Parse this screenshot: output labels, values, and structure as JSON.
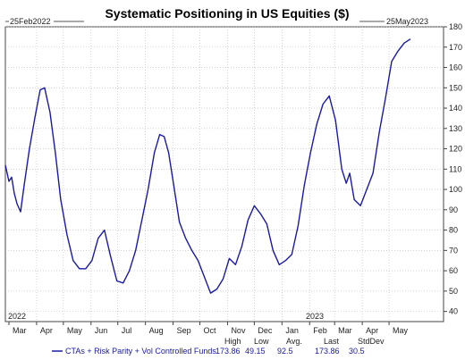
{
  "chart_data": {
    "type": "line",
    "title": "Systematic Positioning in US Equities ($)",
    "start_label": "25Feb2022",
    "end_label": "25May2023",
    "year_labels": [
      "2022",
      "2023"
    ],
    "ylim": [
      35,
      180
    ],
    "yticks": [
      40,
      50,
      60,
      70,
      80,
      90,
      100,
      110,
      120,
      130,
      140,
      150,
      160,
      170,
      180
    ],
    "month_labels": [
      "Mar",
      "Apr",
      "May",
      "Jun",
      "Jul",
      "Aug",
      "Sep",
      "Oct",
      "Nov",
      "Dec",
      "Jan",
      "Feb",
      "Mar",
      "Apr",
      "May"
    ],
    "series": [
      {
        "name": "CTAs + Risk Parity + Vol Controlled Funds",
        "color": "#1a1aa6",
        "x": [
          "2022-02-25",
          "2022-03-01",
          "2022-03-04",
          "2022-03-07",
          "2022-03-10",
          "2022-03-14",
          "2022-03-18",
          "2022-03-24",
          "2022-03-30",
          "2022-04-05",
          "2022-04-10",
          "2022-04-16",
          "2022-04-22",
          "2022-04-28",
          "2022-05-05",
          "2022-05-12",
          "2022-05-19",
          "2022-05-26",
          "2022-06-02",
          "2022-06-09",
          "2022-06-16",
          "2022-06-23",
          "2022-06-30",
          "2022-07-07",
          "2022-07-14",
          "2022-07-21",
          "2022-07-28",
          "2022-08-04",
          "2022-08-11",
          "2022-08-17",
          "2022-08-22",
          "2022-08-27",
          "2022-09-01",
          "2022-09-08",
          "2022-09-15",
          "2022-09-22",
          "2022-09-29",
          "2022-10-06",
          "2022-10-13",
          "2022-10-20",
          "2022-10-27",
          "2022-11-03",
          "2022-11-10",
          "2022-11-17",
          "2022-11-24",
          "2022-12-01",
          "2022-12-08",
          "2022-12-15",
          "2022-12-22",
          "2022-12-29",
          "2023-01-05",
          "2023-01-12",
          "2023-01-19",
          "2023-01-26",
          "2023-02-02",
          "2023-02-09",
          "2023-02-16",
          "2023-02-23",
          "2023-03-02",
          "2023-03-09",
          "2023-03-14",
          "2023-03-18",
          "2023-03-23",
          "2023-03-30",
          "2023-04-06",
          "2023-04-13",
          "2023-04-20",
          "2023-04-27",
          "2023-05-04",
          "2023-05-11",
          "2023-05-18",
          "2023-05-25"
        ],
        "y": [
          112,
          104,
          106,
          98,
          93,
          89,
          102,
          120,
          135,
          149,
          150,
          138,
          118,
          95,
          78,
          65,
          61,
          61,
          65,
          76,
          80,
          67,
          55,
          54,
          60,
          70,
          85,
          100,
          118,
          127,
          126,
          118,
          104,
          84,
          76,
          70,
          65,
          57,
          49,
          51,
          56,
          66,
          63,
          72,
          85,
          92,
          88,
          83,
          70,
          63,
          65,
          68,
          82,
          102,
          118,
          132,
          142,
          146,
          134,
          110,
          103,
          108,
          95,
          92,
          100,
          108,
          128,
          145,
          163,
          168,
          172,
          174
        ]
      }
    ],
    "stats_headers": [
      "High",
      "Low",
      "Avg.",
      "Last",
      "StdDev"
    ],
    "stats_values": [
      "173.86",
      "49.15",
      "92.5",
      "173.86",
      "30.5"
    ],
    "grid": true
  }
}
